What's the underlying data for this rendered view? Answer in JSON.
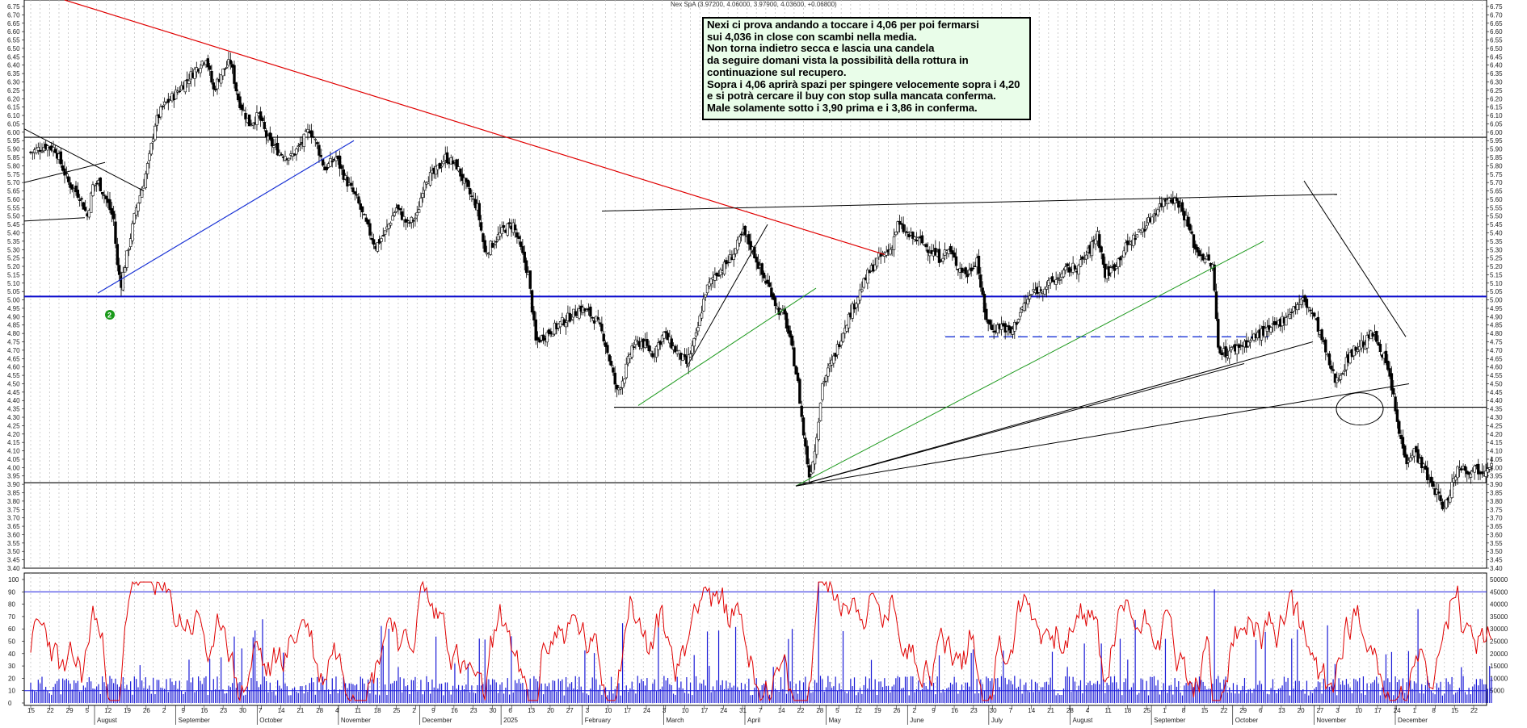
{
  "header": {
    "title": "Nex SpA (3.97200, 4.06000, 3.97900, 4.03600, +0.06800)"
  },
  "annotation": {
    "lines": [
      "Nexi ci prova andando a toccare i 4,06 per poi fermarsi",
      "sui 4,036 in close con scambi nella media.",
      "Non torna indietro secca e lascia una candela",
      "da seguire domani vista la possibilità della rottura in",
      "continuazione sul recupero.",
      "Sopra i 4,06 aprirà spazi per spingere velocemente sopra i 4,20",
      "e si potrà cercare il buy con stop sulla mancata conferma.",
      "Male solamente sotto i 3,90 prima e i 3,86 in conferma."
    ]
  },
  "marker": {
    "label": "2",
    "color": "#1a9a1a"
  },
  "colors": {
    "candles": "#000000",
    "oscillator": "#e00000",
    "volume": "#1b1bd6",
    "downtrend": "#e00000",
    "uptrend_blue": "#1a33d6",
    "uptrend_green": "#1f9a1f",
    "support_blue": "#0a0acc",
    "dashed": "#1a33d6"
  },
  "chart_data": [
    {
      "type": "candlestick",
      "title": "Nex SpA",
      "ylim": [
        3.4,
        6.75
      ],
      "y_ticks": [
        "3.40",
        "3.45",
        "3.50",
        "3.55",
        "3.60",
        "3.65",
        "3.70",
        "3.75",
        "3.80",
        "3.85",
        "3.90",
        "3.95",
        "4.00",
        "4.05",
        "4.10",
        "4.15",
        "4.20",
        "4.25",
        "4.30",
        "4.35",
        "4.40",
        "4.45",
        "4.50",
        "4.55",
        "4.60",
        "4.65",
        "4.70",
        "4.75",
        "4.80",
        "4.85",
        "4.90",
        "4.95",
        "5.00",
        "5.05",
        "5.10",
        "5.15",
        "5.20",
        "5.25",
        "5.30",
        "5.35",
        "5.40",
        "5.45",
        "5.50",
        "5.55",
        "5.60",
        "5.65",
        "5.70",
        "5.75",
        "5.80",
        "5.85",
        "5.90",
        "5.95",
        "6.00",
        "6.05",
        "6.10",
        "6.15",
        "6.20",
        "6.25",
        "6.30",
        "6.35",
        "6.40",
        "6.45",
        "6.50",
        "6.55",
        "6.60",
        "6.65",
        "6.70",
        "6.75"
      ],
      "horizontal_levels": [
        5.97,
        5.02,
        4.36,
        3.91
      ],
      "dashed_level": 4.78,
      "close_path": [
        [
          0,
          5.88
        ],
        [
          4,
          5.9
        ],
        [
          8,
          5.92
        ],
        [
          13,
          5.9
        ],
        [
          20,
          5.7
        ],
        [
          26,
          5.62
        ],
        [
          30,
          5.5
        ],
        [
          33,
          5.68
        ],
        [
          36,
          5.7
        ],
        [
          40,
          5.6
        ],
        [
          44,
          5.48
        ],
        [
          46,
          5.2
        ],
        [
          48,
          5.1
        ],
        [
          52,
          5.32
        ],
        [
          56,
          5.55
        ],
        [
          60,
          5.7
        ],
        [
          63,
          5.85
        ],
        [
          66,
          6.05
        ],
        [
          70,
          6.15
        ],
        [
          76,
          6.22
        ],
        [
          82,
          6.3
        ],
        [
          88,
          6.38
        ],
        [
          93,
          6.45
        ],
        [
          97,
          6.25
        ],
        [
          101,
          6.35
        ],
        [
          106,
          6.42
        ],
        [
          110,
          6.2
        ],
        [
          116,
          6.05
        ],
        [
          121,
          6.1
        ],
        [
          126,
          5.95
        ],
        [
          132,
          5.88
        ],
        [
          138,
          5.85
        ],
        [
          143,
          5.92
        ],
        [
          148,
          6.02
        ],
        [
          152,
          5.92
        ],
        [
          156,
          5.78
        ],
        [
          162,
          5.85
        ],
        [
          167,
          5.72
        ],
        [
          173,
          5.6
        ],
        [
          178,
          5.45
        ],
        [
          183,
          5.32
        ],
        [
          188,
          5.4
        ],
        [
          194,
          5.55
        ],
        [
          200,
          5.45
        ],
        [
          205,
          5.5
        ],
        [
          209,
          5.72
        ],
        [
          214,
          5.75
        ],
        [
          220,
          5.85
        ],
        [
          226,
          5.8
        ],
        [
          232,
          5.65
        ],
        [
          237,
          5.55
        ],
        [
          241,
          5.28
        ],
        [
          246,
          5.35
        ],
        [
          251,
          5.42
        ],
        [
          256,
          5.45
        ],
        [
          260,
          5.3
        ],
        [
          264,
          5.15
        ],
        [
          268,
          4.75
        ],
        [
          274,
          4.8
        ],
        [
          280,
          4.85
        ],
        [
          286,
          4.9
        ],
        [
          292,
          4.95
        ],
        [
          296,
          4.92
        ],
        [
          300,
          4.88
        ],
        [
          304,
          4.78
        ],
        [
          308,
          4.6
        ],
        [
          311,
          4.45
        ],
        [
          315,
          4.55
        ],
        [
          319,
          4.72
        ],
        [
          324,
          4.75
        ],
        [
          330,
          4.68
        ],
        [
          336,
          4.8
        ],
        [
          342,
          4.7
        ],
        [
          348,
          4.62
        ],
        [
          353,
          4.78
        ],
        [
          358,
          5.05
        ],
        [
          363,
          5.15
        ],
        [
          368,
          5.2
        ],
        [
          373,
          5.28
        ],
        [
          378,
          5.4
        ],
        [
          383,
          5.3
        ],
        [
          388,
          5.15
        ],
        [
          393,
          5.05
        ],
        [
          396,
          4.95
        ],
        [
          400,
          4.9
        ],
        [
          404,
          4.7
        ],
        [
          407,
          4.5
        ],
        [
          410,
          4.2
        ],
        [
          413,
          3.95
        ],
        [
          416,
          4.1
        ],
        [
          420,
          4.5
        ],
        [
          426,
          4.65
        ],
        [
          432,
          4.85
        ],
        [
          438,
          5.0
        ],
        [
          444,
          5.15
        ],
        [
          450,
          5.25
        ],
        [
          456,
          5.3
        ],
        [
          460,
          5.45
        ],
        [
          466,
          5.38
        ],
        [
          472,
          5.35
        ],
        [
          477,
          5.3
        ],
        [
          482,
          5.25
        ],
        [
          487,
          5.3
        ],
        [
          492,
          5.2
        ],
        [
          497,
          5.15
        ],
        [
          502,
          5.25
        ],
        [
          506,
          4.92
        ],
        [
          510,
          4.82
        ],
        [
          515,
          4.85
        ],
        [
          520,
          4.8
        ],
        [
          526,
          4.95
        ],
        [
          532,
          5.05
        ],
        [
          538,
          5.08
        ],
        [
          544,
          5.12
        ],
        [
          550,
          5.18
        ],
        [
          556,
          5.2
        ],
        [
          562,
          5.3
        ],
        [
          566,
          5.4
        ],
        [
          570,
          5.15
        ],
        [
          575,
          5.2
        ],
        [
          580,
          5.3
        ],
        [
          586,
          5.38
        ],
        [
          592,
          5.45
        ],
        [
          598,
          5.55
        ],
        [
          604,
          5.62
        ],
        [
          609,
          5.58
        ],
        [
          613,
          5.48
        ],
        [
          618,
          5.3
        ],
        [
          623,
          5.25
        ],
        [
          627,
          5.2
        ],
        [
          630,
          4.72
        ],
        [
          634,
          4.68
        ],
        [
          640,
          4.72
        ],
        [
          646,
          4.75
        ],
        [
          652,
          4.8
        ],
        [
          658,
          4.82
        ],
        [
          664,
          4.88
        ],
        [
          670,
          4.95
        ],
        [
          675,
          5.0
        ],
        [
          680,
          4.92
        ],
        [
          684,
          4.8
        ],
        [
          688,
          4.65
        ],
        [
          692,
          4.52
        ],
        [
          696,
          4.58
        ],
        [
          700,
          4.68
        ],
        [
          704,
          4.72
        ],
        [
          708,
          4.75
        ],
        [
          712,
          4.8
        ],
        [
          716,
          4.72
        ],
        [
          719,
          4.62
        ],
        [
          722,
          4.48
        ],
        [
          726,
          4.2
        ],
        [
          730,
          4.05
        ],
        [
          734,
          4.1
        ],
        [
          738,
          4.02
        ],
        [
          742,
          3.92
        ],
        [
          746,
          3.85
        ],
        [
          750,
          3.75
        ],
        [
          754,
          3.9
        ],
        [
          758,
          4.02
        ],
        [
          762,
          3.98
        ],
        [
          766,
          4.0
        ],
        [
          770,
          3.98
        ],
        [
          775,
          4.04
        ]
      ],
      "annotations": [
        "downtrend line",
        "uptrend line",
        "triangle",
        "ellipse"
      ]
    },
    {
      "type": "line",
      "name": "oscillator",
      "ylim": [
        0,
        100
      ],
      "y_ticks": [
        "0",
        "10",
        "20",
        "30",
        "40",
        "50",
        "60",
        "70",
        "80",
        "90",
        "100"
      ],
      "levels": [
        10,
        90
      ]
    },
    {
      "type": "bar",
      "name": "volume",
      "ylim": [
        0,
        50000
      ],
      "y_ticks": [
        "5000",
        "10000",
        "15000",
        "20000",
        "25000",
        "30000",
        "35000",
        "40000",
        "45000",
        "50000"
      ]
    }
  ],
  "x_axis": {
    "day_labels": [
      "15",
      "22",
      "29",
      "5",
      "12",
      "19",
      "26",
      "2",
      "9",
      "16",
      "23",
      "30",
      "7",
      "14",
      "21",
      "28",
      "4",
      "11",
      "18",
      "25",
      "2",
      "9",
      "16",
      "23",
      "30",
      "6",
      "13",
      "20",
      "27",
      "3",
      "10",
      "17",
      "24",
      "3",
      "10",
      "17",
      "24",
      "31",
      "7",
      "14",
      "22",
      "28",
      "5",
      "12",
      "19",
      "26",
      "2",
      "9",
      "16",
      "23",
      "30",
      "7",
      "14",
      "21",
      "28",
      "4",
      "11",
      "18",
      "25",
      "1",
      "8",
      "15",
      "22",
      "29",
      "6",
      "13",
      "20",
      "27",
      "3",
      "10",
      "17",
      "24",
      "1",
      "8",
      "15",
      "22"
    ],
    "month_labels": [
      "August",
      "September",
      "October",
      "November",
      "December",
      "2025",
      "February",
      "March",
      "April",
      "May",
      "June",
      "July",
      "August",
      "September",
      "October",
      "November",
      "December"
    ]
  }
}
